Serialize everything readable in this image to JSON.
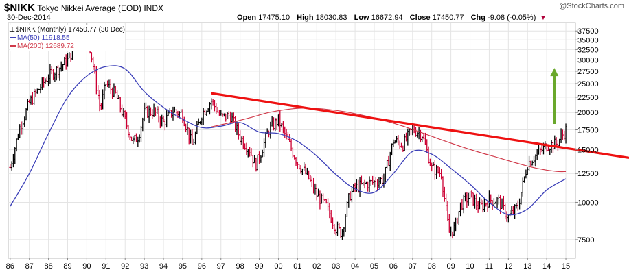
{
  "header": {
    "symbol": "$NIKK",
    "name": "Tokyo Nikkei Average (EOD)",
    "exchange": "INDX",
    "date": "30-Dec-2014",
    "brand": "@StockCharts.com",
    "open_label": "Open",
    "open_value": "17475.10",
    "high_label": "High",
    "high_value": "18030.83",
    "low_label": "Low",
    "low_value": "16672.94",
    "close_label": "Close",
    "close_value": "17450.77",
    "chg_label": "Chg",
    "chg_value": "-9.08 (-0.05%)"
  },
  "legend": {
    "price": "$NIKK (Monthly) 17450.77 (30 Dec)",
    "ma50": "MA(50) 11918.55",
    "ma200": "MA(200) 12689.72"
  },
  "colors": {
    "price_up": "#000000",
    "price_down": "#cc0033",
    "ma50": "#3b3fb8",
    "ma200": "#d03a4a",
    "trendline": "#ee1111",
    "arrow": "#6aa82c",
    "grid": "#e4e4e4"
  },
  "chart_data": {
    "type": "line",
    "title": "$NIKK Tokyo Nikkei Average (EOD) INDX",
    "y_scale": "log",
    "ylim": [
      6500,
      40000
    ],
    "y_ticks": [
      7500,
      10000,
      12500,
      15000,
      17500,
      20000,
      22500,
      25000,
      27500,
      30000,
      32500,
      35000,
      37500
    ],
    "x_ticks": [
      "86",
      "87",
      "88",
      "89",
      "90",
      "91",
      "92",
      "93",
      "94",
      "95",
      "96",
      "97",
      "98",
      "99",
      "00",
      "01",
      "02",
      "03",
      "04",
      "05",
      "06",
      "07",
      "08",
      "09",
      "10",
      "11",
      "12",
      "13",
      "14",
      "15"
    ],
    "x_tick_years": [
      1986,
      1987,
      1988,
      1989,
      1990,
      1991,
      1992,
      1993,
      1994,
      1995,
      1996,
      1997,
      1998,
      1999,
      2000,
      2001,
      2002,
      2003,
      2004,
      2005,
      2006,
      2007,
      2008,
      2009,
      2010,
      2011,
      2012,
      2013,
      2014,
      2015
    ],
    "grid": true,
    "legend_position": "top-left",
    "series": [
      {
        "name": "$NIKK (Monthly)",
        "style": "ohlc-bars",
        "x": [
          1986.0,
          1986.5,
          1987.0,
          1987.5,
          1988.0,
          1988.5,
          1989.0,
          1989.5,
          1990.0,
          1990.3,
          1990.7,
          1991.0,
          1991.5,
          1992.0,
          1992.4,
          1992.7,
          1993.0,
          1993.5,
          1994.0,
          1994.5,
          1995.0,
          1995.5,
          1996.0,
          1996.5,
          1997.0,
          1997.5,
          1998.0,
          1998.5,
          1998.8,
          1999.0,
          1999.5,
          2000.0,
          2000.5,
          2001.0,
          2001.5,
          2002.0,
          2002.5,
          2003.0,
          2003.3,
          2003.7,
          2004.0,
          2004.5,
          2005.0,
          2005.5,
          2006.0,
          2006.5,
          2007.0,
          2007.5,
          2008.0,
          2008.5,
          2008.9,
          2009.2,
          2009.5,
          2010.0,
          2010.5,
          2011.0,
          2011.5,
          2012.0,
          2012.5,
          2013.0,
          2013.5,
          2014.0,
          2014.5,
          2015.0
        ],
        "y": [
          13100,
          17800,
          21500,
          24000,
          26500,
          28000,
          30000,
          34500,
          38000,
          29500,
          20500,
          25000,
          23000,
          18800,
          15900,
          16700,
          20000,
          20200,
          18500,
          20300,
          19700,
          15500,
          19800,
          21900,
          19300,
          19500,
          16500,
          15000,
          13300,
          14200,
          17500,
          18900,
          16000,
          13600,
          12300,
          10600,
          9700,
          8200,
          7900,
          10500,
          11200,
          11500,
          11700,
          12000,
          16100,
          15600,
          17600,
          16900,
          13000,
          12500,
          7900,
          8200,
          9800,
          10500,
          9600,
          10200,
          10100,
          8900,
          9700,
          13500,
          14500,
          15500,
          15700,
          17450
        ]
      },
      {
        "name": "MA(50)",
        "x": [
          1986.0,
          1987.0,
          1988.0,
          1989.0,
          1990.0,
          1991.0,
          1992.0,
          1993.0,
          1994.0,
          1995.0,
          1996.0,
          1997.0,
          1998.0,
          1999.0,
          2000.0,
          2001.0,
          2002.0,
          2003.0,
          2004.0,
          2005.0,
          2006.0,
          2007.0,
          2008.0,
          2009.0,
          2010.0,
          2011.0,
          2012.0,
          2013.0,
          2014.0,
          2015.0
        ],
        "y": [
          9700,
          12500,
          17000,
          22500,
          26500,
          28500,
          28000,
          23500,
          20800,
          19000,
          17800,
          18000,
          18500,
          17200,
          17000,
          16000,
          14300,
          12400,
          11100,
          10800,
          12500,
          14800,
          14500,
          13000,
          11500,
          10000,
          9100,
          9500,
          11000,
          12000
        ]
      },
      {
        "name": "MA(200)",
        "x": [
          1996.5,
          1997.5,
          1998.5,
          1999.5,
          2000.5,
          2001.5,
          2002.5,
          2003.5,
          2004.5,
          2005.5,
          2006.5,
          2007.5,
          2008.5,
          2009.5,
          2010.5,
          2011.5,
          2012.5,
          2013.5,
          2014.5,
          2015.0
        ],
        "y": [
          17900,
          18500,
          19200,
          20000,
          20500,
          20700,
          20500,
          20100,
          19500,
          18800,
          18000,
          17100,
          16200,
          15400,
          14700,
          14100,
          13500,
          13000,
          12700,
          12690
        ]
      },
      {
        "name": "Trendline",
        "x": [
          1996.5,
          2015.3
        ],
        "y": [
          23200,
          15100
        ]
      }
    ],
    "annotations": [
      {
        "type": "arrow",
        "direction": "up",
        "x": 2014.4,
        "y_from": 18300,
        "y_to": 28200
      }
    ]
  }
}
